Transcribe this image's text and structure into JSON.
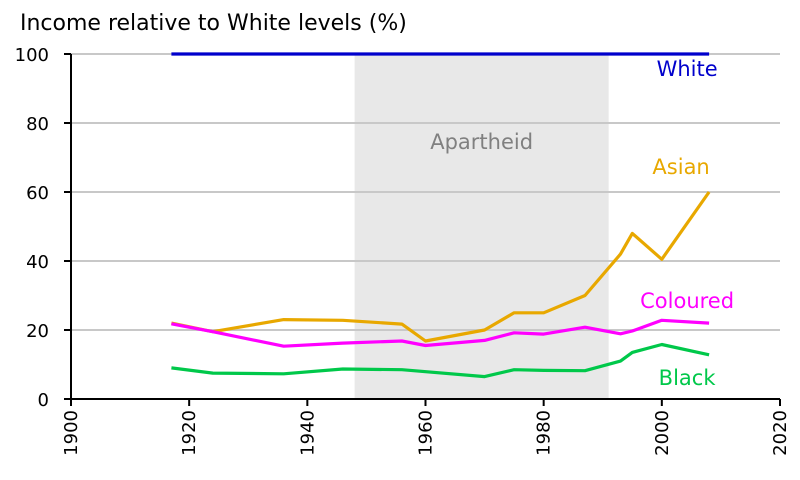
{
  "chart_data": {
    "type": "line",
    "title": "Income relative to White levels (%)",
    "xlabel": "",
    "ylabel": "",
    "xlim": [
      1900,
      2020
    ],
    "ylim": [
      0,
      100
    ],
    "x_ticks": [
      1900,
      1920,
      1940,
      1960,
      1980,
      2000,
      2020
    ],
    "y_ticks": [
      0,
      20,
      40,
      60,
      80,
      100
    ],
    "grid": "horizontal",
    "shaded_region": {
      "label": "Apartheid",
      "x_start": 1948,
      "x_end": 1991,
      "color": "#e8e8e8"
    },
    "series": [
      {
        "name": "White",
        "color": "#0000cc",
        "points": [
          [
            1917,
            100
          ],
          [
            2008,
            100
          ]
        ]
      },
      {
        "name": "Asian",
        "color": "#e8a800",
        "points": [
          [
            1917,
            22
          ],
          [
            1924,
            19.5
          ],
          [
            1936,
            23
          ],
          [
            1946,
            22.8
          ],
          [
            1956,
            21.7
          ],
          [
            1960,
            16.8
          ],
          [
            1970,
            20
          ],
          [
            1975,
            25
          ],
          [
            1980,
            25
          ],
          [
            1987,
            30
          ],
          [
            1993,
            42
          ],
          [
            1995,
            48
          ],
          [
            2000,
            40.5
          ],
          [
            2008,
            60
          ]
        ]
      },
      {
        "name": "Coloured",
        "color": "#ff00ff",
        "points": [
          [
            1917,
            21.8
          ],
          [
            1924,
            19.5
          ],
          [
            1936,
            15.3
          ],
          [
            1946,
            16.2
          ],
          [
            1956,
            16.8
          ],
          [
            1960,
            15.5
          ],
          [
            1970,
            17
          ],
          [
            1975,
            19.2
          ],
          [
            1980,
            18.8
          ],
          [
            1987,
            20.8
          ],
          [
            1993,
            18.9
          ],
          [
            1995,
            19.7
          ],
          [
            2000,
            22.8
          ],
          [
            2008,
            22
          ]
        ]
      },
      {
        "name": "Black",
        "color": "#00c84a",
        "points": [
          [
            1917,
            9
          ],
          [
            1924,
            7.5
          ],
          [
            1936,
            7.3
          ],
          [
            1946,
            8.7
          ],
          [
            1956,
            8.5
          ],
          [
            1970,
            6.5
          ],
          [
            1975,
            8.5
          ],
          [
            1980,
            8.3
          ],
          [
            1987,
            8.2
          ],
          [
            1993,
            11
          ],
          [
            1995,
            13.5
          ],
          [
            2000,
            15.8
          ],
          [
            2008,
            12.8
          ]
        ]
      }
    ]
  }
}
